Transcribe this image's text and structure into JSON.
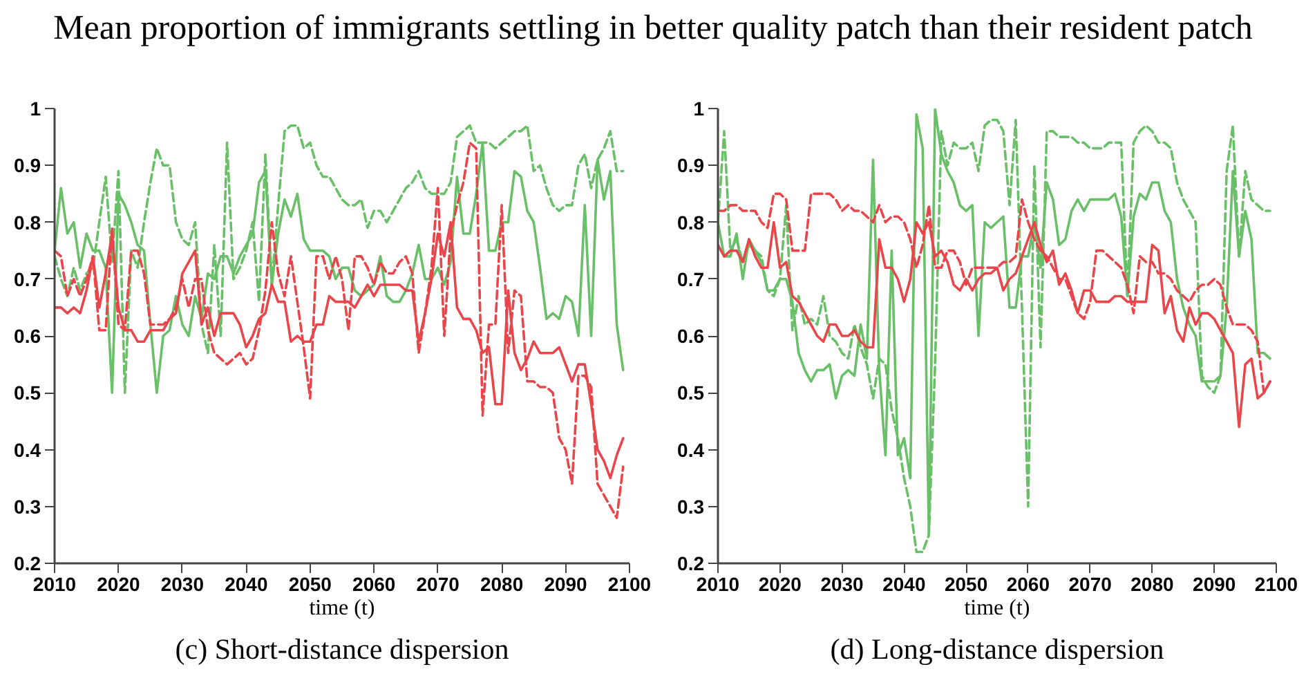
{
  "chart_data": [
    {
      "type": "line",
      "title": "Mean proportion of immigrants settling in better quality patch than their resident patch",
      "xlabel": "time (t)",
      "annotations": [
        "(c) Short-distance dispersion"
      ],
      "x": [
        2010,
        2011,
        2012,
        2013,
        2014,
        2015,
        2016,
        2017,
        2018,
        2019,
        2020,
        2021,
        2022,
        2023,
        2024,
        2025,
        2026,
        2027,
        2028,
        2029,
        2030,
        2031,
        2032,
        2033,
        2034,
        2035,
        2036,
        2037,
        2038,
        2039,
        2040,
        2041,
        2042,
        2043,
        2044,
        2045,
        2046,
        2047,
        2048,
        2049,
        2050,
        2051,
        2052,
        2053,
        2054,
        2055,
        2056,
        2057,
        2058,
        2059,
        2060,
        2061,
        2062,
        2063,
        2064,
        2065,
        2066,
        2067,
        2068,
        2069,
        2070,
        2071,
        2072,
        2073,
        2074,
        2075,
        2076,
        2077,
        2078,
        2079,
        2080,
        2081,
        2082,
        2083,
        2084,
        2085,
        2086,
        2087,
        2088,
        2089,
        2090,
        2091,
        2092,
        2093,
        2094,
        2095,
        2096,
        2097,
        2098,
        2099
      ],
      "xlim": [
        2010,
        2100
      ],
      "xticks": [
        2010,
        2020,
        2030,
        2040,
        2050,
        2060,
        2070,
        2080,
        2090,
        2100
      ],
      "ylim": [
        0.2,
        1
      ],
      "yticks": [
        0.2,
        0.3,
        0.4,
        0.5,
        0.6,
        0.7,
        0.8,
        0.9,
        1
      ],
      "series": [
        {
          "color": "#6abf69",
          "line_style": "solid",
          "values": [
            0.75,
            0.86,
            0.78,
            0.8,
            0.72,
            0.78,
            0.75,
            0.75,
            0.72,
            0.5,
            0.85,
            0.83,
            0.8,
            0.76,
            0.75,
            0.62,
            0.5,
            0.6,
            0.61,
            0.67,
            0.62,
            0.6,
            0.67,
            0.63,
            0.71,
            0.7,
            0.74,
            0.74,
            0.71,
            0.74,
            0.76,
            0.78,
            0.87,
            0.89,
            0.69,
            0.78,
            0.84,
            0.81,
            0.85,
            0.77,
            0.75,
            0.75,
            0.75,
            0.74,
            0.7,
            0.72,
            0.72,
            0.68,
            0.67,
            0.68,
            0.69,
            0.74,
            0.67,
            0.66,
            0.66,
            0.68,
            0.71,
            0.76,
            0.7,
            0.7,
            0.72,
            0.69,
            0.73,
            0.88,
            0.78,
            0.78,
            0.85,
            0.94,
            0.75,
            0.75,
            0.8,
            0.8,
            0.89,
            0.88,
            0.82,
            0.8,
            0.72,
            0.63,
            0.64,
            0.63,
            0.67,
            0.66,
            0.6,
            0.83,
            0.6,
            0.91,
            0.84,
            0.89,
            0.62,
            0.54
          ]
        },
        {
          "color": "#6abf69",
          "line_style": "dashed",
          "values": [
            0.74,
            0.7,
            0.67,
            0.72,
            0.68,
            0.71,
            0.72,
            0.8,
            0.88,
            0.73,
            0.89,
            0.5,
            0.75,
            0.72,
            0.8,
            0.87,
            0.93,
            0.9,
            0.9,
            0.8,
            0.77,
            0.76,
            0.8,
            0.62,
            0.57,
            0.76,
            0.6,
            0.94,
            0.7,
            0.72,
            0.75,
            0.8,
            0.66,
            0.92,
            0.69,
            0.83,
            0.96,
            0.97,
            0.97,
            0.93,
            0.94,
            0.9,
            0.88,
            0.88,
            0.86,
            0.84,
            0.83,
            0.83,
            0.84,
            0.79,
            0.82,
            0.82,
            0.8,
            0.82,
            0.84,
            0.86,
            0.87,
            0.89,
            0.86,
            0.85,
            0.85,
            0.85,
            0.87,
            0.95,
            0.96,
            0.97,
            0.94,
            0.94,
            0.94,
            0.93,
            0.94,
            0.95,
            0.96,
            0.96,
            0.97,
            0.89,
            0.9,
            0.86,
            0.83,
            0.82,
            0.83,
            0.83,
            0.9,
            0.92,
            0.86,
            0.91,
            0.93,
            0.96,
            0.89,
            0.89
          ]
        },
        {
          "color": "#e8464b",
          "line_style": "solid",
          "values": [
            0.65,
            0.65,
            0.64,
            0.65,
            0.64,
            0.68,
            0.74,
            0.65,
            0.71,
            0.78,
            0.65,
            0.61,
            0.61,
            0.59,
            0.59,
            0.61,
            0.61,
            0.61,
            0.63,
            0.64,
            0.71,
            0.73,
            0.75,
            0.62,
            0.65,
            0.6,
            0.64,
            0.64,
            0.64,
            0.62,
            0.58,
            0.6,
            0.63,
            0.64,
            0.69,
            0.66,
            0.66,
            0.59,
            0.6,
            0.59,
            0.59,
            0.62,
            0.62,
            0.67,
            0.66,
            0.66,
            0.66,
            0.65,
            0.67,
            0.69,
            0.67,
            0.69,
            0.69,
            0.69,
            0.69,
            0.68,
            0.68,
            0.59,
            0.64,
            0.7,
            0.78,
            0.74,
            0.8,
            0.65,
            0.63,
            0.63,
            0.61,
            0.57,
            0.58,
            0.48,
            0.48,
            0.68,
            0.57,
            0.54,
            0.56,
            0.59,
            0.57,
            0.57,
            0.57,
            0.58,
            0.55,
            0.52,
            0.55,
            0.55,
            0.48,
            0.4,
            0.38,
            0.35,
            0.39,
            0.42
          ]
        },
        {
          "color": "#e8464b",
          "line_style": "dashed",
          "values": [
            0.75,
            0.74,
            0.67,
            0.7,
            0.67,
            0.7,
            0.74,
            0.61,
            0.61,
            0.79,
            0.62,
            0.61,
            0.75,
            0.75,
            0.71,
            0.62,
            0.62,
            0.62,
            0.63,
            0.65,
            0.7,
            0.65,
            0.7,
            0.7,
            0.61,
            0.57,
            0.56,
            0.55,
            0.56,
            0.57,
            0.55,
            0.56,
            0.61,
            0.68,
            0.8,
            0.71,
            0.67,
            0.74,
            0.66,
            0.58,
            0.49,
            0.74,
            0.74,
            0.7,
            0.74,
            0.7,
            0.61,
            0.74,
            0.74,
            0.72,
            0.69,
            0.73,
            0.71,
            0.71,
            0.73,
            0.74,
            0.71,
            0.57,
            0.64,
            0.72,
            0.86,
            0.6,
            0.78,
            0.83,
            0.87,
            0.94,
            0.93,
            0.46,
            0.62,
            0.62,
            0.83,
            0.57,
            0.68,
            0.67,
            0.52,
            0.52,
            0.51,
            0.51,
            0.5,
            0.42,
            0.4,
            0.34,
            0.53,
            0.53,
            0.51,
            0.34,
            0.32,
            0.3,
            0.28,
            0.37
          ]
        }
      ]
    },
    {
      "type": "line",
      "xlabel": "time (t)",
      "annotations": [
        "(d) Long-distance dispersion"
      ],
      "x": [
        2010,
        2011,
        2012,
        2013,
        2014,
        2015,
        2016,
        2017,
        2018,
        2019,
        2020,
        2021,
        2022,
        2023,
        2024,
        2025,
        2026,
        2027,
        2028,
        2029,
        2030,
        2031,
        2032,
        2033,
        2034,
        2035,
        2036,
        2037,
        2038,
        2039,
        2040,
        2041,
        2042,
        2043,
        2044,
        2045,
        2046,
        2047,
        2048,
        2049,
        2050,
        2051,
        2052,
        2053,
        2054,
        2055,
        2056,
        2057,
        2058,
        2059,
        2060,
        2061,
        2062,
        2063,
        2064,
        2065,
        2066,
        2067,
        2068,
        2069,
        2070,
        2071,
        2072,
        2073,
        2074,
        2075,
        2076,
        2077,
        2078,
        2079,
        2080,
        2081,
        2082,
        2083,
        2084,
        2085,
        2086,
        2087,
        2088,
        2089,
        2090,
        2091,
        2092,
        2093,
        2094,
        2095,
        2096,
        2097,
        2098,
        2099
      ],
      "xlim": [
        2010,
        2100
      ],
      "xticks": [
        2010,
        2020,
        2030,
        2040,
        2050,
        2060,
        2070,
        2080,
        2090,
        2100
      ],
      "ylim": [
        0.2,
        1
      ],
      "yticks": [
        0.2,
        0.3,
        0.4,
        0.5,
        0.6,
        0.7,
        0.8,
        0.9,
        1
      ],
      "series": [
        {
          "color": "#6abf69",
          "line_style": "solid",
          "values": [
            0.8,
            0.74,
            0.74,
            0.78,
            0.7,
            0.77,
            0.75,
            0.73,
            0.68,
            0.68,
            0.7,
            0.7,
            0.66,
            0.57,
            0.54,
            0.52,
            0.54,
            0.54,
            0.55,
            0.49,
            0.53,
            0.54,
            0.53,
            0.62,
            0.56,
            0.91,
            0.54,
            0.39,
            0.75,
            0.39,
            0.42,
            0.35,
            0.99,
            0.93,
            0.25,
            1.0,
            0.92,
            0.89,
            0.87,
            0.83,
            0.82,
            0.83,
            0.6,
            0.8,
            0.79,
            0.8,
            0.81,
            0.65,
            0.65,
            0.74,
            0.74,
            0.8,
            0.72,
            0.87,
            0.84,
            0.76,
            0.77,
            0.82,
            0.84,
            0.82,
            0.84,
            0.84,
            0.84,
            0.84,
            0.85,
            0.81,
            0.67,
            0.81,
            0.85,
            0.84,
            0.87,
            0.87,
            0.82,
            0.8,
            0.7,
            0.65,
            0.62,
            0.6,
            0.52,
            0.52,
            0.52,
            0.53,
            0.65,
            0.89,
            0.74,
            0.82,
            0.77,
            0.57,
            0.57,
            0.56
          ]
        },
        {
          "color": "#6abf69",
          "line_style": "dashed",
          "values": [
            0.8,
            0.96,
            0.75,
            0.77,
            0.73,
            0.76,
            0.75,
            0.74,
            0.68,
            0.67,
            0.7,
            0.83,
            0.61,
            0.67,
            0.62,
            0.63,
            0.62,
            0.67,
            0.6,
            0.59,
            0.57,
            0.56,
            0.62,
            0.58,
            0.55,
            0.49,
            0.56,
            0.55,
            0.47,
            0.42,
            0.35,
            0.3,
            0.22,
            0.22,
            0.25,
            0.55,
            0.96,
            0.9,
            0.94,
            0.93,
            0.93,
            0.94,
            0.89,
            0.97,
            0.98,
            0.98,
            0.96,
            0.83,
            0.98,
            0.65,
            0.3,
            0.9,
            0.58,
            0.96,
            0.96,
            0.95,
            0.95,
            0.95,
            0.94,
            0.94,
            0.93,
            0.93,
            0.93,
            0.94,
            0.94,
            0.94,
            0.67,
            0.94,
            0.96,
            0.97,
            0.96,
            0.94,
            0.94,
            0.93,
            0.87,
            0.84,
            0.82,
            0.8,
            0.53,
            0.51,
            0.5,
            0.53,
            0.89,
            0.97,
            0.74,
            0.89,
            0.84,
            0.83,
            0.82,
            0.82
          ]
        },
        {
          "color": "#e8464b",
          "line_style": "solid",
          "values": [
            0.76,
            0.74,
            0.75,
            0.75,
            0.73,
            0.77,
            0.74,
            0.72,
            0.72,
            0.8,
            0.72,
            0.73,
            0.67,
            0.66,
            0.64,
            0.62,
            0.6,
            0.59,
            0.62,
            0.62,
            0.6,
            0.6,
            0.61,
            0.59,
            0.58,
            0.58,
            0.77,
            0.72,
            0.72,
            0.7,
            0.66,
            0.7,
            0.8,
            0.78,
            0.8,
            0.74,
            0.75,
            0.73,
            0.69,
            0.68,
            0.7,
            0.68,
            0.7,
            0.71,
            0.71,
            0.72,
            0.68,
            0.7,
            0.71,
            0.74,
            0.77,
            0.8,
            0.76,
            0.73,
            0.75,
            0.69,
            0.71,
            0.68,
            0.64,
            0.68,
            0.68,
            0.66,
            0.66,
            0.66,
            0.67,
            0.67,
            0.66,
            0.66,
            0.66,
            0.66,
            0.76,
            0.75,
            0.64,
            0.67,
            0.61,
            0.59,
            0.65,
            0.62,
            0.64,
            0.64,
            0.63,
            0.61,
            0.59,
            0.57,
            0.44,
            0.55,
            0.56,
            0.49,
            0.5,
            0.52
          ]
        },
        {
          "color": "#e8464b",
          "line_style": "dashed",
          "values": [
            0.82,
            0.82,
            0.83,
            0.83,
            0.82,
            0.82,
            0.82,
            0.8,
            0.79,
            0.85,
            0.85,
            0.84,
            0.75,
            0.75,
            0.75,
            0.85,
            0.85,
            0.85,
            0.85,
            0.84,
            0.82,
            0.83,
            0.82,
            0.82,
            0.81,
            0.8,
            0.83,
            0.8,
            0.81,
            0.81,
            0.8,
            0.77,
            0.72,
            0.76,
            0.83,
            0.72,
            0.72,
            0.75,
            0.75,
            0.73,
            0.69,
            0.72,
            0.72,
            0.72,
            0.72,
            0.72,
            0.73,
            0.73,
            0.74,
            0.84,
            0.8,
            0.77,
            0.75,
            0.74,
            0.72,
            0.7,
            0.7,
            0.67,
            0.64,
            0.63,
            0.66,
            0.75,
            0.75,
            0.74,
            0.73,
            0.72,
            0.69,
            0.64,
            0.74,
            0.73,
            0.73,
            0.71,
            0.71,
            0.7,
            0.68,
            0.67,
            0.66,
            0.68,
            0.69,
            0.69,
            0.7,
            0.69,
            0.65,
            0.62,
            0.62,
            0.62,
            0.61,
            0.59,
            0.5,
            0.52
          ]
        }
      ]
    }
  ]
}
